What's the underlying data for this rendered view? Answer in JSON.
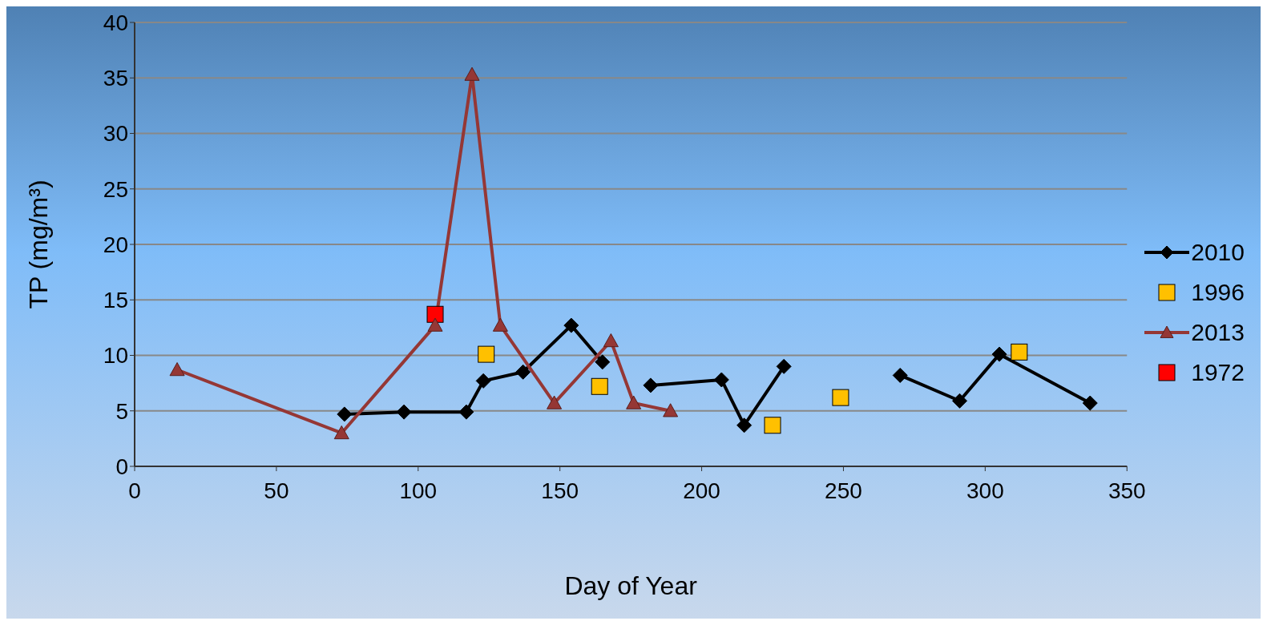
{
  "chart_data": {
    "type": "line",
    "xlabel": "Day of Year",
    "ylabel": "TP (mg/m³)",
    "xlim": [
      0,
      350
    ],
    "xticks": [
      0,
      50,
      100,
      150,
      200,
      250,
      300,
      350
    ],
    "ylim": [
      0,
      40
    ],
    "yticks": [
      0,
      5,
      10,
      15,
      20,
      25,
      30,
      35,
      40
    ],
    "grid": "y",
    "legend": "right",
    "line_style": "solid",
    "series": [
      {
        "name": "2010",
        "marker": "diamond",
        "color": "#000000",
        "x": [
          74,
          95,
          117,
          123,
          137,
          154,
          165,
          null,
          182,
          207,
          215,
          229,
          null,
          270,
          291,
          305,
          337
        ],
        "values": [
          4.7,
          4.9,
          4.9,
          7.7,
          8.5,
          12.7,
          9.4,
          null,
          7.3,
          7.8,
          3.7,
          9.0,
          null,
          8.2,
          5.9,
          10.1,
          5.7
        ]
      },
      {
        "name": "1996",
        "type": "scatter",
        "marker": "square",
        "color": "#ffc000",
        "x": [
          124,
          164,
          225,
          249,
          312
        ],
        "values": [
          10.1,
          7.2,
          3.7,
          6.2,
          10.3
        ]
      },
      {
        "name": "2013",
        "marker": "triangle",
        "color": "#953735",
        "x": [
          15,
          73,
          106,
          119,
          129,
          148,
          168,
          176,
          189
        ],
        "values": [
          8.7,
          3.0,
          12.7,
          35.3,
          12.7,
          5.7,
          11.3,
          5.7,
          5.0
        ]
      },
      {
        "name": "1972",
        "type": "scatter",
        "marker": "square",
        "color": "#ff0000",
        "x": [
          106
        ],
        "values": [
          13.7
        ]
      }
    ]
  }
}
